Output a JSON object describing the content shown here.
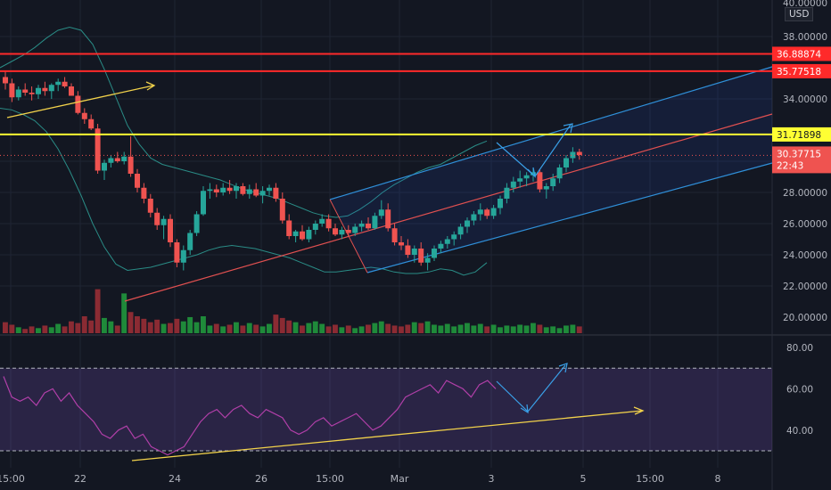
{
  "currency": "USD",
  "colors": {
    "background": "#131722",
    "up": "#26a69a",
    "down": "#ef5350",
    "vol_up": "#1f8a3a",
    "vol_down": "#8b2b33",
    "resistance": "#ff2a2a",
    "level": "#ffff33",
    "channel": "#2f8fd8",
    "channel_fill": "rgba(41,98,255,0.10)",
    "trend": "#e05050",
    "bollinger": "#2a8c86",
    "rsi": "#b03fa8",
    "rsi_band": "rgba(126,87,194,0.22)",
    "annotation": "#f2d24b",
    "arrow": "#3aa0e8"
  },
  "chart_data": [
    {
      "type": "candlestick",
      "series_name": "Price",
      "y_ticks": [
        "22.00000",
        "24.00000",
        "26.00000",
        "28.00000",
        "34.00000",
        "38.00000",
        "40.00000",
        "20.00000"
      ],
      "ylim": [
        19.5,
        40.0
      ],
      "x_ticks": [
        "15:00",
        "22",
        "24",
        "26",
        "15:00",
        "Mar",
        "3",
        "5",
        "15:00",
        "8"
      ],
      "levels": [
        {
          "label": "36.88874",
          "value": 36.88874,
          "color": "resistance"
        },
        {
          "label": "35.77518",
          "value": 35.77518,
          "color": "resistance"
        },
        {
          "label": "31.71898",
          "value": 31.71898,
          "color": "level"
        }
      ],
      "last_price": {
        "label": "30.37715",
        "countdown": "22:43",
        "value": 30.37715
      },
      "candles": [
        [
          35.4,
          35.8,
          34.6,
          35.0
        ],
        [
          35.0,
          35.3,
          33.8,
          34.1
        ],
        [
          34.1,
          34.8,
          33.9,
          34.6
        ],
        [
          34.6,
          35.0,
          34.2,
          34.4
        ],
        [
          34.4,
          34.8,
          33.9,
          34.3
        ],
        [
          34.3,
          34.9,
          34.0,
          34.7
        ],
        [
          34.7,
          35.1,
          34.2,
          34.5
        ],
        [
          34.5,
          35.0,
          34.0,
          34.9
        ],
        [
          34.9,
          35.3,
          34.5,
          35.1
        ],
        [
          35.1,
          35.4,
          34.7,
          34.8
        ],
        [
          34.8,
          35.0,
          34.2,
          34.2
        ],
        [
          34.2,
          34.5,
          33.0,
          33.1
        ],
        [
          33.1,
          33.4,
          32.4,
          32.7
        ],
        [
          32.7,
          33.0,
          32.0,
          32.1
        ],
        [
          32.1,
          32.4,
          29.2,
          29.4
        ],
        [
          29.4,
          30.1,
          28.8,
          29.9
        ],
        [
          29.9,
          30.4,
          29.6,
          30.2
        ],
        [
          30.2,
          30.6,
          29.9,
          30.0
        ],
        [
          30.0,
          30.6,
          29.8,
          30.3
        ],
        [
          30.3,
          31.6,
          29.0,
          29.2
        ],
        [
          29.2,
          29.5,
          28.0,
          28.3
        ],
        [
          28.3,
          28.6,
          27.3,
          27.6
        ],
        [
          27.6,
          27.9,
          26.4,
          26.7
        ],
        [
          26.7,
          27.0,
          25.6,
          25.9
        ],
        [
          25.9,
          26.5,
          25.0,
          26.3
        ],
        [
          26.3,
          26.6,
          24.5,
          24.8
        ],
        [
          24.8,
          25.0,
          23.2,
          23.5
        ],
        [
          23.5,
          24.6,
          23.0,
          24.3
        ],
        [
          24.3,
          25.6,
          24.0,
          25.4
        ],
        [
          25.4,
          26.8,
          25.2,
          26.6
        ],
        [
          26.6,
          28.4,
          26.5,
          28.1
        ],
        [
          28.1,
          28.6,
          27.6,
          28.2
        ],
        [
          28.2,
          28.5,
          27.7,
          28.0
        ],
        [
          28.0,
          28.6,
          27.8,
          28.3
        ],
        [
          28.3,
          28.8,
          27.9,
          28.1
        ],
        [
          28.1,
          28.6,
          27.6,
          28.4
        ],
        [
          28.4,
          28.6,
          27.8,
          27.9
        ],
        [
          27.9,
          28.5,
          27.6,
          28.2
        ],
        [
          28.2,
          28.6,
          27.7,
          27.8
        ],
        [
          27.8,
          28.4,
          27.3,
          28.1
        ],
        [
          28.1,
          28.5,
          27.8,
          28.3
        ],
        [
          28.3,
          28.6,
          27.4,
          27.6
        ],
        [
          27.6,
          28.0,
          26.0,
          26.2
        ],
        [
          26.2,
          26.6,
          25.0,
          25.2
        ],
        [
          25.2,
          25.6,
          24.8,
          25.5
        ],
        [
          25.5,
          25.9,
          24.9,
          25.0
        ],
        [
          25.0,
          25.8,
          24.8,
          25.6
        ],
        [
          25.6,
          26.2,
          25.3,
          26.0
        ],
        [
          26.0,
          26.6,
          25.8,
          26.3
        ],
        [
          26.3,
          26.6,
          25.5,
          25.7
        ],
        [
          25.7,
          26.0,
          25.2,
          25.3
        ],
        [
          25.3,
          25.8,
          25.0,
          25.6
        ],
        [
          25.6,
          25.9,
          25.2,
          25.4
        ],
        [
          25.4,
          26.0,
          25.2,
          25.8
        ],
        [
          25.8,
          26.2,
          25.5,
          26.0
        ],
        [
          26.0,
          26.4,
          25.6,
          25.7
        ],
        [
          25.7,
          26.7,
          25.6,
          26.5
        ],
        [
          26.5,
          27.5,
          26.3,
          26.9
        ],
        [
          26.9,
          27.3,
          25.5,
          25.7
        ],
        [
          25.7,
          26.0,
          24.6,
          24.8
        ],
        [
          24.8,
          25.2,
          24.3,
          24.6
        ],
        [
          24.6,
          25.0,
          23.8,
          24.0
        ],
        [
          24.0,
          24.6,
          23.5,
          24.4
        ],
        [
          24.4,
          24.8,
          23.3,
          23.5
        ],
        [
          23.5,
          24.1,
          23.0,
          23.8
        ],
        [
          23.8,
          24.6,
          23.6,
          24.4
        ],
        [
          24.4,
          24.9,
          24.1,
          24.7
        ],
        [
          24.7,
          25.2,
          24.4,
          25.0
        ],
        [
          25.0,
          25.5,
          24.6,
          25.3
        ],
        [
          25.3,
          26.0,
          25.0,
          25.8
        ],
        [
          25.8,
          26.4,
          25.4,
          26.2
        ],
        [
          26.2,
          26.8,
          25.9,
          26.6
        ],
        [
          26.6,
          27.3,
          26.2,
          26.9
        ],
        [
          26.9,
          27.0,
          26.3,
          26.5
        ],
        [
          26.5,
          27.2,
          26.3,
          27.0
        ],
        [
          27.0,
          27.8,
          26.6,
          27.6
        ],
        [
          27.6,
          28.6,
          27.3,
          28.3
        ],
        [
          28.3,
          29.0,
          28.0,
          28.7
        ],
        [
          28.7,
          29.4,
          28.3,
          28.9
        ],
        [
          28.9,
          29.3,
          28.4,
          29.1
        ],
        [
          29.1,
          29.6,
          28.7,
          29.3
        ],
        [
          29.3,
          29.5,
          28.0,
          28.2
        ],
        [
          28.2,
          28.6,
          27.6,
          28.4
        ],
        [
          28.4,
          29.2,
          28.1,
          28.9
        ],
        [
          28.9,
          29.8,
          28.6,
          29.6
        ],
        [
          29.6,
          30.4,
          29.3,
          30.2
        ],
        [
          30.2,
          30.9,
          29.9,
          30.6
        ],
        [
          30.6,
          30.8,
          30.1,
          30.4
        ]
      ],
      "bollinger_upper": [
        36.0,
        36.4,
        36.8,
        37.3,
        37.9,
        38.4,
        38.6,
        38.4,
        37.5,
        35.9,
        34.1,
        32.3,
        31.1,
        30.2,
        29.8,
        29.6,
        29.4,
        29.2,
        29.0,
        28.8,
        28.5,
        28.2,
        28.0,
        27.8,
        27.6,
        27.3,
        27.0,
        26.7,
        26.5,
        26.4,
        26.5,
        26.9,
        27.4,
        28.0,
        28.5,
        28.9,
        29.3,
        29.6,
        29.8,
        30.2,
        30.6,
        31.0,
        31.3
      ],
      "bollinger_lower": [
        33.4,
        33.3,
        33.0,
        32.6,
        31.9,
        30.8,
        29.4,
        27.8,
        26.0,
        24.5,
        23.4,
        23.0,
        23.1,
        23.2,
        23.4,
        23.6,
        23.8,
        24.0,
        24.3,
        24.5,
        24.6,
        24.5,
        24.4,
        24.2,
        24.0,
        23.8,
        23.5,
        23.2,
        22.9,
        22.9,
        23.0,
        23.1,
        23.2,
        23.1,
        22.9,
        22.8,
        22.8,
        22.9,
        23.1,
        23.0,
        22.7,
        22.9,
        23.5
      ],
      "volume": [
        0.13,
        0.1,
        0.07,
        0.05,
        0.08,
        0.06,
        0.09,
        0.07,
        0.11,
        0.08,
        0.14,
        0.12,
        0.2,
        0.15,
        0.52,
        0.18,
        0.14,
        0.09,
        0.47,
        0.25,
        0.2,
        0.17,
        0.13,
        0.16,
        0.11,
        0.12,
        0.17,
        0.14,
        0.19,
        0.13,
        0.2,
        0.09,
        0.11,
        0.08,
        0.1,
        0.13,
        0.09,
        0.12,
        0.1,
        0.08,
        0.11,
        0.22,
        0.18,
        0.15,
        0.13,
        0.09,
        0.12,
        0.14,
        0.11,
        0.08,
        0.1,
        0.07,
        0.09,
        0.06,
        0.08,
        0.1,
        0.12,
        0.14,
        0.11,
        0.09,
        0.08,
        0.1,
        0.13,
        0.12,
        0.14,
        0.1,
        0.09,
        0.11,
        0.08,
        0.1,
        0.12,
        0.09,
        0.11,
        0.08,
        0.1,
        0.07,
        0.09,
        0.08,
        0.1,
        0.09,
        0.12,
        0.1,
        0.07,
        0.08,
        0.06,
        0.09,
        0.1,
        0.08
      ]
    },
    {
      "type": "line",
      "series_name": "RSI",
      "y_ticks": [
        "80.00",
        "60.00",
        "40.00"
      ],
      "ylim": [
        24,
        86
      ],
      "bands": [
        30,
        70
      ],
      "values": [
        66,
        56,
        54,
        56,
        52,
        58,
        60,
        54,
        58,
        52,
        48,
        44,
        38,
        36,
        40,
        42,
        36,
        38,
        32,
        30,
        28,
        30,
        32,
        38,
        44,
        48,
        50,
        46,
        50,
        52,
        48,
        46,
        50,
        48,
        46,
        40,
        38,
        40,
        44,
        46,
        42,
        44,
        46,
        48,
        44,
        40,
        42,
        46,
        50,
        56,
        58,
        60,
        62,
        58,
        64,
        62,
        60,
        56,
        62,
        64,
        60
      ]
    }
  ]
}
